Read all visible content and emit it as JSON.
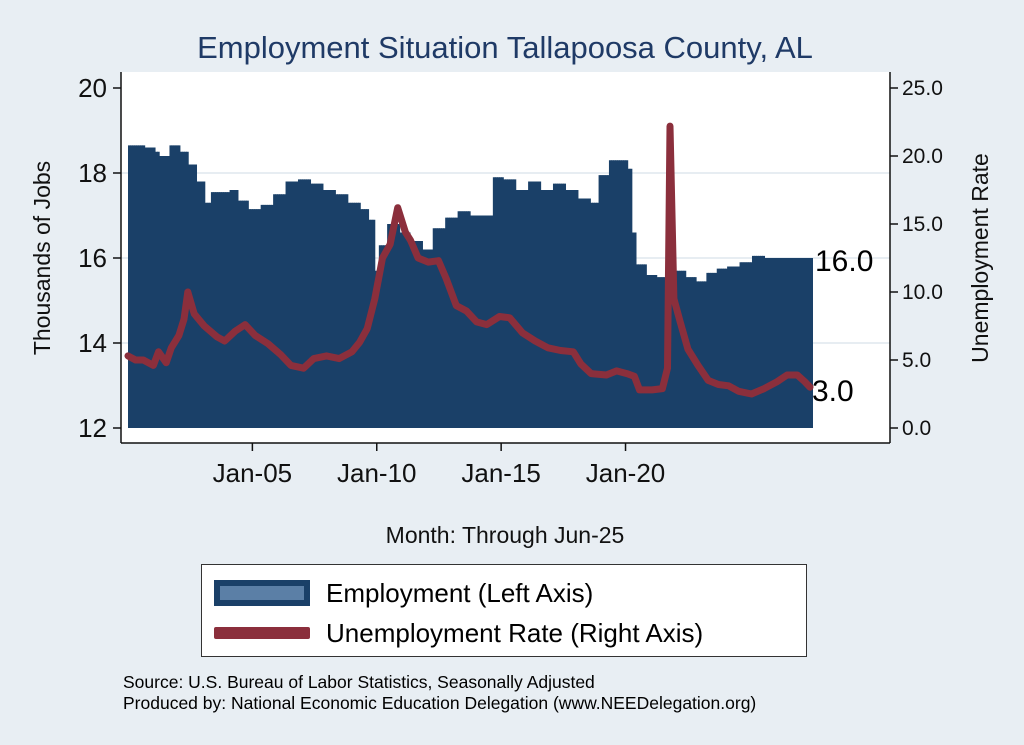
{
  "chart_data": {
    "type": "bar+line",
    "title": "Employment Situation Tallapoosa  County, AL",
    "xlabel": "Month: Through Jun-25",
    "ylabel_left": "Thousands of Jobs",
    "ylabel_right": "Unemployment Rate",
    "ylim_left": [
      12,
      20
    ],
    "ylim_right": [
      0,
      25
    ],
    "yticks_left": [
      "20",
      "18",
      "16",
      "14",
      "12"
    ],
    "yticks_right": [
      "25.0",
      "20.0",
      "15.0",
      "10.0",
      "5.0",
      "0.0"
    ],
    "xticks": [
      "Jan-05",
      "Jan-10",
      "Jan-15",
      "Jan-20"
    ],
    "x_start_year": 2000,
    "x_end_year": 2025.5,
    "series": [
      {
        "name": "Employment (Left Axis)",
        "kind": "bar",
        "color": "#1a4068",
        "points": [
          [
            2000.0,
            18.65
          ],
          [
            2000.6,
            18.6
          ],
          [
            2001.0,
            18.5
          ],
          [
            2001.2,
            18.4
          ],
          [
            2001.6,
            18.65
          ],
          [
            2002.0,
            18.5
          ],
          [
            2002.4,
            18.2
          ],
          [
            2002.7,
            17.8
          ],
          [
            2003.0,
            17.3
          ],
          [
            2003.3,
            17.55
          ],
          [
            2004.0,
            17.6
          ],
          [
            2004.4,
            17.35
          ],
          [
            2004.8,
            17.15
          ],
          [
            2005.3,
            17.25
          ],
          [
            2005.8,
            17.5
          ],
          [
            2006.3,
            17.8
          ],
          [
            2006.8,
            17.85
          ],
          [
            2007.3,
            17.75
          ],
          [
            2007.8,
            17.6
          ],
          [
            2008.3,
            17.5
          ],
          [
            2008.8,
            17.3
          ],
          [
            2009.3,
            17.15
          ],
          [
            2009.6,
            16.9
          ],
          [
            2009.9,
            15.7
          ],
          [
            2010.0,
            16.3
          ],
          [
            2010.4,
            16.8
          ],
          [
            2010.9,
            16.6
          ],
          [
            2011.3,
            16.4
          ],
          [
            2011.8,
            16.2
          ],
          [
            2012.2,
            16.7
          ],
          [
            2012.7,
            16.95
          ],
          [
            2013.2,
            17.1
          ],
          [
            2013.7,
            17.0
          ],
          [
            2014.2,
            17.0
          ],
          [
            2014.6,
            17.9
          ],
          [
            2015.0,
            17.85
          ],
          [
            2015.5,
            17.6
          ],
          [
            2016.0,
            17.8
          ],
          [
            2016.5,
            17.6
          ],
          [
            2017.0,
            17.75
          ],
          [
            2017.5,
            17.6
          ],
          [
            2018.0,
            17.4
          ],
          [
            2018.5,
            17.3
          ],
          [
            2018.9,
            17.95
          ],
          [
            2019.3,
            18.3
          ],
          [
            2019.7,
            18.3
          ],
          [
            2020.0,
            18.1
          ],
          [
            2020.2,
            16.6
          ],
          [
            2020.4,
            15.85
          ],
          [
            2020.8,
            15.6
          ],
          [
            2021.2,
            15.55
          ],
          [
            2021.6,
            15.7
          ],
          [
            2022.0,
            15.7
          ],
          [
            2022.4,
            15.55
          ],
          [
            2022.8,
            15.45
          ],
          [
            2023.2,
            15.65
          ],
          [
            2023.6,
            15.75
          ],
          [
            2024.0,
            15.8
          ],
          [
            2024.5,
            15.9
          ],
          [
            2025.0,
            16.05
          ],
          [
            2025.5,
            16.0
          ]
        ]
      },
      {
        "name": "Unemployment Rate (Right Axis)",
        "kind": "line",
        "color": "#8b2f3c",
        "points": [
          [
            2000.0,
            5.3
          ],
          [
            2000.3,
            5.0
          ],
          [
            2000.6,
            5.0
          ],
          [
            2001.0,
            4.6
          ],
          [
            2001.2,
            5.6
          ],
          [
            2001.5,
            4.8
          ],
          [
            2001.7,
            5.9
          ],
          [
            2002.0,
            6.8
          ],
          [
            2002.2,
            8.0
          ],
          [
            2002.35,
            10.0
          ],
          [
            2002.6,
            8.4
          ],
          [
            2003.0,
            7.5
          ],
          [
            2003.5,
            6.7
          ],
          [
            2003.8,
            6.4
          ],
          [
            2004.2,
            7.1
          ],
          [
            2004.6,
            7.6
          ],
          [
            2005.0,
            6.8
          ],
          [
            2005.5,
            6.2
          ],
          [
            2006.0,
            5.4
          ],
          [
            2006.4,
            4.6
          ],
          [
            2006.9,
            4.4
          ],
          [
            2007.3,
            5.1
          ],
          [
            2007.8,
            5.3
          ],
          [
            2008.3,
            5.1
          ],
          [
            2008.8,
            5.6
          ],
          [
            2009.1,
            6.3
          ],
          [
            2009.4,
            7.3
          ],
          [
            2009.7,
            9.5
          ],
          [
            2010.0,
            12.5
          ],
          [
            2010.3,
            13.5
          ],
          [
            2010.6,
            16.2
          ],
          [
            2010.9,
            14.4
          ],
          [
            2011.1,
            13.8
          ],
          [
            2011.4,
            12.5
          ],
          [
            2011.8,
            12.2
          ],
          [
            2012.2,
            12.3
          ],
          [
            2012.5,
            11.0
          ],
          [
            2012.9,
            9.0
          ],
          [
            2013.3,
            8.6
          ],
          [
            2013.7,
            7.8
          ],
          [
            2014.1,
            7.6
          ],
          [
            2014.6,
            8.2
          ],
          [
            2015.0,
            8.1
          ],
          [
            2015.5,
            7.0
          ],
          [
            2016.0,
            6.4
          ],
          [
            2016.5,
            5.9
          ],
          [
            2017.0,
            5.7
          ],
          [
            2017.5,
            5.6
          ],
          [
            2017.8,
            4.7
          ],
          [
            2018.2,
            4.0
          ],
          [
            2018.8,
            3.9
          ],
          [
            2019.2,
            4.2
          ],
          [
            2019.6,
            4.0
          ],
          [
            2019.9,
            3.8
          ],
          [
            2020.1,
            2.8
          ],
          [
            2020.6,
            2.8
          ],
          [
            2021.0,
            2.9
          ],
          [
            2021.2,
            4.4
          ],
          [
            2021.3,
            22.2
          ],
          [
            2021.45,
            9.5
          ],
          [
            2021.7,
            7.8
          ],
          [
            2022.0,
            5.8
          ],
          [
            2022.4,
            4.6
          ],
          [
            2022.8,
            3.5
          ],
          [
            2023.2,
            3.2
          ],
          [
            2023.6,
            3.1
          ],
          [
            2024.0,
            2.7
          ],
          [
            2024.5,
            2.5
          ],
          [
            2025.0,
            2.9
          ],
          [
            2025.5,
            3.4
          ],
          [
            2025.9,
            3.9
          ],
          [
            2026.3,
            3.9
          ],
          [
            2026.6,
            3.4
          ],
          [
            2026.8,
            3.0
          ]
        ]
      }
    ],
    "end_labels": {
      "employment": "16.0",
      "unemployment": "3.0"
    }
  },
  "legend": {
    "employment_label": "Employment (Left Axis)",
    "unemployment_label": "Unemployment Rate (Right Axis)"
  },
  "notes": {
    "source": "Source: U.S. Bureau of Labor Statistics, Seasonally Adjusted",
    "produced_by": "Produced by: National Economic Education Delegation (www.NEEDelegation.org)"
  }
}
